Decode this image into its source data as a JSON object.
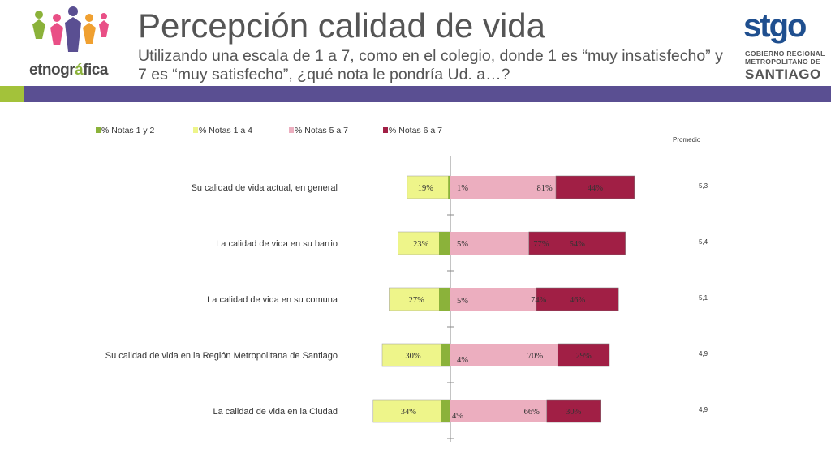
{
  "header": {
    "title": "Percepción calidad de vida",
    "subtitle": "Utilizando una escala de 1 a 7, como en el colegio, donde 1 es “muy insatisfecho” y 7 es “muy satisfecho”, ¿qué nota le pondría Ud. a…?"
  },
  "logos": {
    "left_text_main": "etnogr",
    "left_text_accent": "á",
    "left_text_end": "fica",
    "right_mark": "stgo",
    "right_line1": "GOBIERNO REGIONAL",
    "right_line2": "METROPOLITANO DE",
    "right_line3": "SANTIAGO"
  },
  "colors": {
    "band_green": "#a3c23a",
    "band_purple": "#5a4f92",
    "notas_1_2": "#8bb23a",
    "notas_1_4": "#eef58a",
    "notas_5_7": "#ecaebf",
    "notas_6_7": "#a11f45"
  },
  "chart_data": {
    "type": "bar",
    "orientation": "horizontal-diverging",
    "legend_position": "top-left",
    "legend": [
      "% Notas 1 y 2",
      "% Notas 1 a 4",
      "% Notas 5 a 7",
      "% Notas 6 a 7"
    ],
    "promedio_label": "Promedio",
    "categories": [
      "Su calidad de vida actual, en general",
      "La calidad de vida en su barrio",
      "La calidad de vida en su comuna",
      "Su calidad de vida en la Región Metropolitana de Santiago",
      "La calidad de vida en la Ciudad"
    ],
    "series": [
      {
        "name": "% Notas 1 y 2",
        "values": [
          1,
          5,
          5,
          4,
          4
        ],
        "labels": [
          "1%",
          "5%",
          "5%",
          "4%",
          "4%"
        ]
      },
      {
        "name": "% Notas 1 a 4",
        "values": [
          19,
          23,
          27,
          30,
          34
        ],
        "labels": [
          "19%",
          "23%",
          "27%",
          "30%",
          "34%"
        ]
      },
      {
        "name": "% Notas 5 a 7",
        "values": [
          81,
          77,
          74,
          70,
          66
        ],
        "labels": [
          "81%",
          "77%",
          "74%",
          "70%",
          "66%"
        ]
      },
      {
        "name": "% Notas 6 a 7",
        "values": [
          44,
          54,
          46,
          29,
          30
        ],
        "labels": [
          "44%",
          "54%",
          "46%",
          "29%",
          "30%"
        ]
      }
    ],
    "promedio": [
      "5,3",
      "5,4",
      "5,1",
      "4,9",
      "4,9"
    ]
  }
}
